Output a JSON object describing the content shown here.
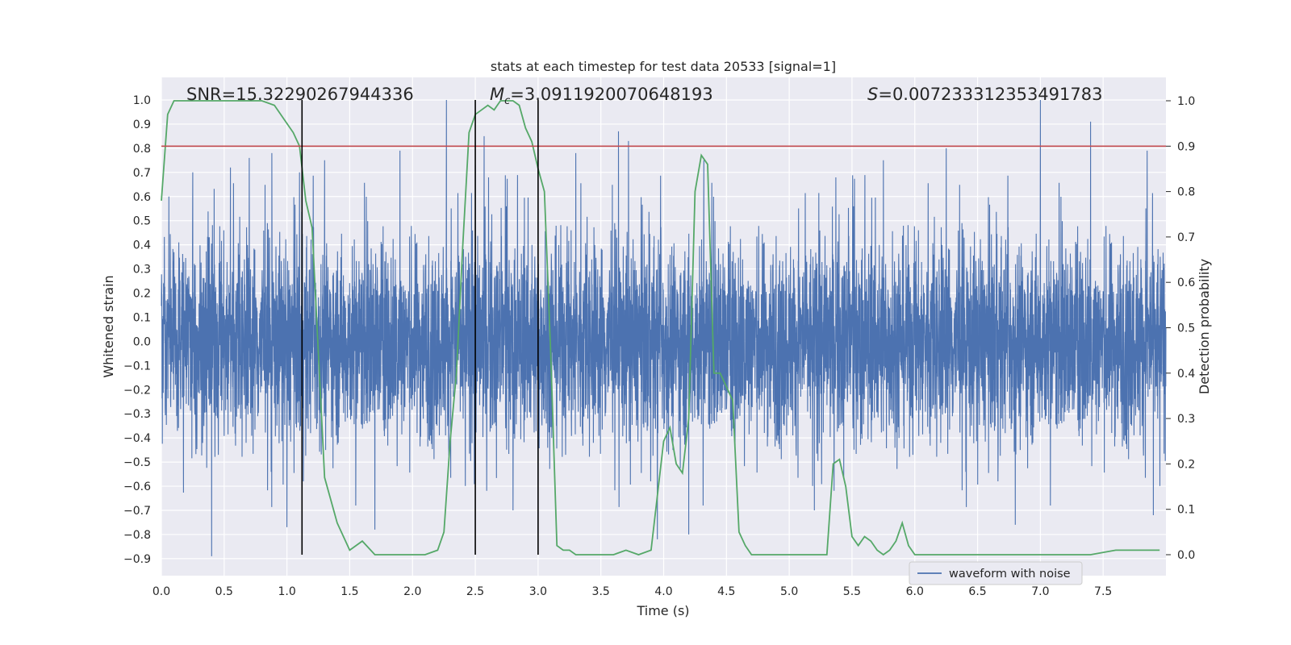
{
  "chart_data": {
    "type": "line",
    "title": "stats at each timestep for test data 20533 [signal=1]",
    "xlabel": "Time (s)",
    "ylabel_left": "Whitened strain",
    "ylabel_right": "Detection probability",
    "xlim": [
      0.0,
      8.0
    ],
    "ylim_left": [
      -0.98,
      1.09
    ],
    "ylim_right": [
      0.0,
      1.0
    ],
    "x_ticks": [
      "0.0",
      "0.5",
      "1.0",
      "1.5",
      "2.0",
      "2.5",
      "3.0",
      "3.5",
      "4.0",
      "4.5",
      "5.0",
      "5.5",
      "6.0",
      "6.5",
      "7.0",
      "7.5"
    ],
    "y_ticks_left": [
      "1.0",
      "0.9",
      "0.8",
      "0.7",
      "0.6",
      "0.5",
      "0.4",
      "0.3",
      "0.2",
      "0.1",
      "0.0",
      "−0.1",
      "−0.2",
      "−0.3",
      "−0.4",
      "−0.5",
      "−0.6",
      "−0.7",
      "−0.8",
      "−0.9"
    ],
    "y_ticks_right": [
      "1.0",
      "0.9",
      "0.8",
      "0.7",
      "0.6",
      "0.5",
      "0.4",
      "0.3",
      "0.2",
      "0.1",
      "0.0"
    ],
    "grid": true,
    "legend": {
      "placement": "bottom-center-right",
      "entries": [
        "waveform with noise"
      ]
    },
    "annotations": {
      "snr_label": "SNR=15.32290267944336",
      "mc_label_symbol": "M",
      "mc_label_sub": "c",
      "mc_label_value": "=3.0911920070648193",
      "s_label_symbol": "S",
      "s_label_value": "=0.007233312353491783"
    },
    "threshold": {
      "value": 0.9,
      "axis": "right",
      "color": "#c44e52"
    },
    "vertical_markers": [
      1.12,
      2.5,
      3.0
    ],
    "series": [
      {
        "name": "waveform with noise",
        "axis": "left",
        "color": "#4c72b0",
        "description": "dense noisy whitened strain, approx. amplitude envelope -0.9 to 1.0",
        "peak_spikes": [
          [
            0.06,
            0.6
          ],
          [
            0.25,
            0.7
          ],
          [
            0.4,
            -0.89
          ],
          [
            0.55,
            0.72
          ],
          [
            0.7,
            0.76
          ],
          [
            0.88,
            0.78
          ],
          [
            1.0,
            -0.77
          ],
          [
            1.1,
            0.7
          ],
          [
            1.3,
            0.75
          ],
          [
            1.7,
            -0.78
          ],
          [
            1.9,
            0.79
          ],
          [
            2.27,
            1.0
          ],
          [
            2.5,
            0.73
          ],
          [
            2.57,
            0.85
          ],
          [
            2.8,
            -0.7
          ],
          [
            3.0,
            -0.81
          ],
          [
            3.3,
            0.78
          ],
          [
            3.64,
            0.87
          ],
          [
            3.72,
            0.83
          ],
          [
            3.95,
            -0.82
          ],
          [
            4.2,
            -0.8
          ],
          [
            4.32,
            0.75
          ],
          [
            5.2,
            -0.7
          ],
          [
            5.75,
            0.75
          ],
          [
            6.25,
            0.8
          ],
          [
            6.8,
            -0.76
          ],
          [
            7.0,
            1.0
          ],
          [
            7.4,
            0.91
          ],
          [
            7.85,
            0.79
          ],
          [
            7.9,
            -0.72
          ]
        ]
      },
      {
        "name": "detection probability",
        "axis": "right",
        "color": "#55a868",
        "x": [
          0.0,
          0.05,
          0.1,
          0.2,
          0.3,
          0.4,
          0.5,
          0.6,
          0.7,
          0.8,
          0.9,
          1.0,
          1.05,
          1.1,
          1.15,
          1.2,
          1.3,
          1.4,
          1.5,
          1.6,
          1.7,
          1.8,
          1.9,
          2.0,
          2.1,
          2.2,
          2.25,
          2.3,
          2.35,
          2.4,
          2.45,
          2.5,
          2.55,
          2.6,
          2.65,
          2.7,
          2.75,
          2.8,
          2.85,
          2.9,
          2.95,
          3.0,
          3.05,
          3.1,
          3.15,
          3.2,
          3.25,
          3.3,
          3.4,
          3.5,
          3.6,
          3.7,
          3.8,
          3.9,
          4.0,
          4.05,
          4.1,
          4.15,
          4.2,
          4.25,
          4.3,
          4.35,
          4.4,
          4.45,
          4.5,
          4.55,
          4.6,
          4.65,
          4.7,
          4.8,
          4.9,
          5.0,
          5.1,
          5.2,
          5.3,
          5.35,
          5.4,
          5.45,
          5.5,
          5.55,
          5.6,
          5.65,
          5.7,
          5.75,
          5.8,
          5.85,
          5.9,
          5.95,
          6.0,
          6.05,
          6.1,
          6.2,
          6.4,
          6.6,
          6.8,
          7.0,
          7.2,
          7.4,
          7.6,
          7.8,
          7.95
        ],
        "values": [
          0.78,
          0.97,
          1.0,
          1.0,
          1.0,
          1.0,
          1.0,
          1.0,
          1.0,
          1.0,
          0.99,
          0.95,
          0.93,
          0.9,
          0.78,
          0.72,
          0.17,
          0.07,
          0.01,
          0.03,
          0.0,
          0.0,
          0.0,
          0.0,
          0.0,
          0.01,
          0.05,
          0.25,
          0.4,
          0.68,
          0.93,
          0.97,
          0.98,
          0.99,
          0.98,
          1.0,
          1.0,
          1.0,
          0.99,
          0.94,
          0.91,
          0.85,
          0.8,
          0.45,
          0.02,
          0.01,
          0.01,
          0.0,
          0.0,
          0.0,
          0.0,
          0.01,
          0.0,
          0.01,
          0.25,
          0.28,
          0.2,
          0.18,
          0.3,
          0.8,
          0.88,
          0.86,
          0.4,
          0.4,
          0.37,
          0.34,
          0.05,
          0.02,
          0.0,
          0.0,
          0.0,
          0.0,
          0.0,
          0.0,
          0.0,
          0.2,
          0.21,
          0.15,
          0.04,
          0.02,
          0.04,
          0.03,
          0.01,
          0.0,
          0.01,
          0.03,
          0.07,
          0.02,
          0.0,
          0.0,
          0.0,
          0.0,
          0.0,
          0.0,
          0.0,
          0.0,
          0.0,
          0.0,
          0.01,
          0.01,
          0.01
        ]
      }
    ]
  }
}
